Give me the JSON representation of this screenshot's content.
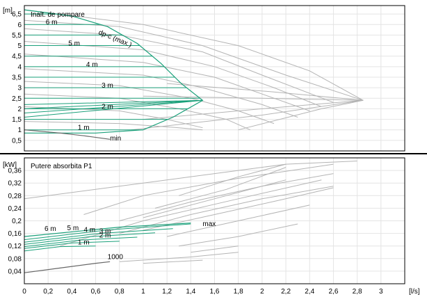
{
  "chart_data": [
    {
      "type": "line",
      "title": "Inalt. de pompare",
      "ylabel": "[m]",
      "ylim": [
        0,
        6.9
      ],
      "xlim": [
        0,
        3.2
      ],
      "yticks": [
        "0,5",
        "1",
        "1,5",
        "2",
        "2,5",
        "3",
        "3,5",
        "4",
        "4,5",
        "5",
        "5,5",
        "6",
        "6,5"
      ],
      "ytick_values": [
        0.5,
        1,
        1.5,
        2,
        2.5,
        3,
        3.5,
        4,
        4.5,
        5,
        5.5,
        6,
        6.5
      ],
      "colors": {
        "active": "#1aa07a",
        "inactive": "#b4b4b4",
        "min": "#666666",
        "grid": "#e4e4e4"
      },
      "series": [
        {
          "name": "6 m",
          "y": 6
        },
        {
          "name": "5 m",
          "y": 5
        },
        {
          "name": "4 m",
          "y": 4
        },
        {
          "name": "3 m",
          "y": 3
        },
        {
          "name": "2 m",
          "y": 2
        },
        {
          "name": "1 m",
          "y": 1
        }
      ],
      "annotations": {
        "max_curve": "dp-c (max.)",
        "min_curve": "min"
      },
      "max_curve": [
        [
          0,
          6.7
        ],
        [
          0.4,
          6.4
        ],
        [
          0.7,
          5.9
        ],
        [
          0.95,
          5.1
        ],
        [
          1.15,
          4.15
        ],
        [
          1.32,
          3.2
        ],
        [
          1.5,
          2.4
        ],
        [
          1.25,
          1.6
        ],
        [
          1.0,
          1.0
        ],
        [
          0.6,
          0.85
        ],
        [
          0,
          0.85
        ]
      ],
      "min_curve": [
        [
          0,
          1.0
        ],
        [
          0.3,
          0.85
        ],
        [
          0.5,
          0.72
        ],
        [
          0.72,
          0.55
        ]
      ]
    },
    {
      "type": "line",
      "title": "Putere absorbita P1",
      "ylabel": "[kW]",
      "xlabel": "[l/s]",
      "ylim": [
        0,
        0.4
      ],
      "xlim": [
        0,
        3.2
      ],
      "yticks": [
        "0,04",
        "0,08",
        "0,12",
        "0,16",
        "0,2",
        "0,24",
        "0,28",
        "0,32",
        "0,36"
      ],
      "ytick_values": [
        0.04,
        0.08,
        0.12,
        0.16,
        0.2,
        0.24,
        0.28,
        0.32,
        0.36
      ],
      "xticks": [
        "0",
        "0,2",
        "0,4",
        "0,6",
        "0,8",
        "1",
        "1,2",
        "1,4",
        "1,6",
        "1,8",
        "2",
        "2,2",
        "2,4",
        "2,6",
        "2,8",
        "3"
      ],
      "xtick_values": [
        0,
        0.2,
        0.4,
        0.6,
        0.8,
        1,
        1.2,
        1.4,
        1.6,
        1.8,
        2,
        2.2,
        2.4,
        2.6,
        2.8,
        3
      ],
      "series": [
        {
          "name": "6 m",
          "start": 0.14,
          "end_x": 1.4,
          "end_y": 0.19
        },
        {
          "name": "5 m",
          "start": 0.132,
          "end_x": 1.25,
          "end_y": 0.175
        },
        {
          "name": "4 m",
          "start": 0.125,
          "end_x": 1.1,
          "end_y": 0.162
        },
        {
          "name": "3 m",
          "start": 0.118,
          "end_x": 0.95,
          "end_y": 0.148
        },
        {
          "name": "2 m",
          "start": 0.112,
          "end_x": 0.8,
          "end_y": 0.135
        },
        {
          "name": "1 m",
          "start": 0.104,
          "end_x": 0.6,
          "end_y": 0.12
        }
      ],
      "annotations": {
        "max_curve": "max",
        "min_curve": "1000"
      },
      "min_curve": [
        [
          0,
          0.035
        ],
        [
          0.3,
          0.05
        ],
        [
          0.6,
          0.065
        ],
        [
          0.72,
          0.07
        ]
      ]
    }
  ]
}
